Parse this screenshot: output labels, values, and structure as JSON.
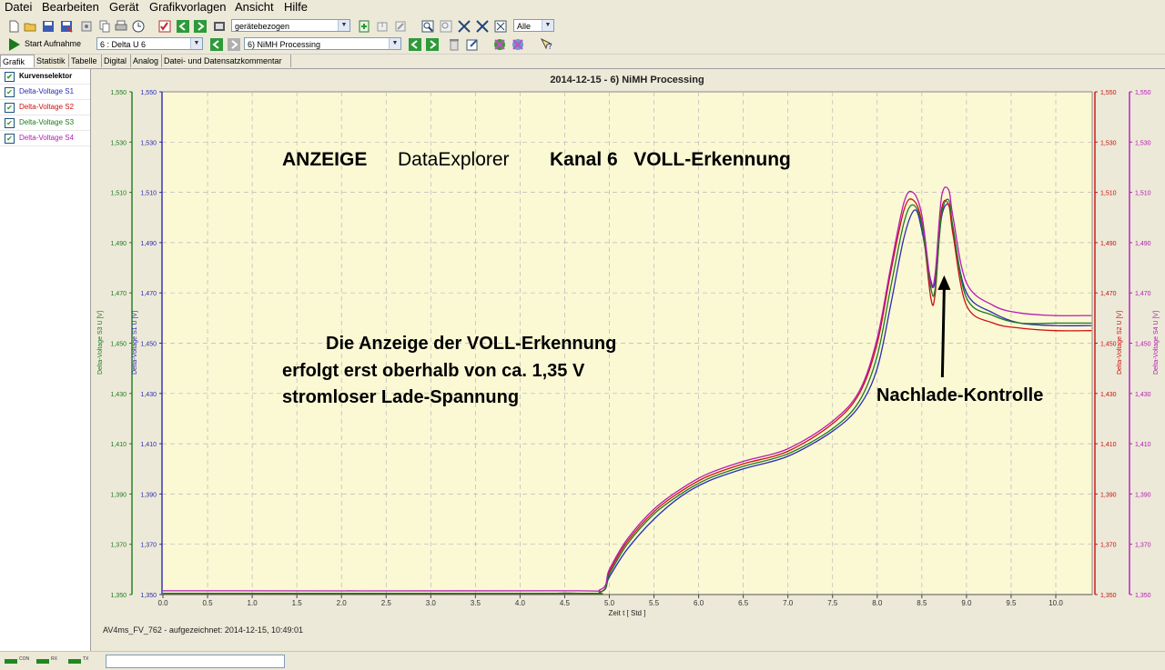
{
  "menu": {
    "items": [
      {
        "label": "Datei",
        "accel": "D"
      },
      {
        "label": "Bearbeiten",
        "accel": "B"
      },
      {
        "label": "Gerät",
        "accel": "G"
      },
      {
        "label": "Grafikvorlagen",
        "accel": "v"
      },
      {
        "label": "Ansicht",
        "accel": "A"
      },
      {
        "label": "Hilfe",
        "accel": "H"
      }
    ]
  },
  "toolbar1": {
    "device_mode": "gerätebezogen",
    "filter": "Alle"
  },
  "toolbar2": {
    "start_label": "Start Aufnahme",
    "channel": "6 : Delta  U  6",
    "template": "6) NiMH Processing"
  },
  "tabs": [
    "Grafik",
    "Statistik",
    "Tabelle",
    "Digital",
    "Analog",
    "Datei- und Datensatzkommentar"
  ],
  "sidebar": {
    "header": "Kurvenselektor",
    "items": [
      {
        "label": "Delta-Voltage S1",
        "color": "#2b2bb4"
      },
      {
        "label": "Delta-Voltage S2",
        "color": "#cc1111"
      },
      {
        "label": "Delta-Voltage S3",
        "color": "#1e7a1e"
      },
      {
        "label": "Delta-Voltage S4",
        "color": "#b51bb5"
      }
    ]
  },
  "chart_data": {
    "type": "line",
    "title": "2014-12-15 - 6) NiMH Processing",
    "xlabel": "Zeit  t  [ Std ]",
    "xlim": [
      0,
      10.4
    ],
    "xticks": [
      "0.0",
      "0.5",
      "1.0",
      "1.5",
      "2.0",
      "2.5",
      "3.0",
      "3.5",
      "4.0",
      "4.5",
      "5.0",
      "5.5",
      "6.0",
      "6.5",
      "7.0",
      "7.5",
      "8.0",
      "8.5",
      "9.0",
      "9.5",
      "10.0"
    ],
    "ylim": [
      1.35,
      1.55
    ],
    "yticks": [
      "1,350",
      "1,370",
      "1,390",
      "1,410",
      "1,430",
      "1,450",
      "1,470",
      "1,490",
      "1,510",
      "1,530",
      "1,550"
    ],
    "axis_labels": {
      "s3": "Delta-Voltage S3  U  [V]",
      "s1": "Delta-Voltage S1  U  [V]",
      "s2": "Delta-Voltage S2  U  [V]",
      "s4": "Delta-Voltage S4  U  [V]"
    },
    "grid": true,
    "background": "#fbf8d4",
    "series": [
      {
        "name": "Delta-Voltage S1",
        "color": "#2b2bb4",
        "x": [
          0,
          4.4,
          4.9,
          5.0,
          5.2,
          5.5,
          5.8,
          6.1,
          6.5,
          7.0,
          7.5,
          7.8,
          8.0,
          8.15,
          8.3,
          8.42,
          8.5,
          8.6,
          8.65,
          8.72,
          8.8,
          8.85,
          9.0,
          9.3,
          9.6,
          10.0,
          10.4
        ],
        "y": [
          1.3505,
          1.3505,
          1.351,
          1.357,
          1.368,
          1.38,
          1.389,
          1.395,
          1.4,
          1.405,
          1.415,
          1.425,
          1.44,
          1.465,
          1.492,
          1.503,
          1.495,
          1.475,
          1.475,
          1.5,
          1.505,
          1.495,
          1.47,
          1.462,
          1.458,
          1.457,
          1.457
        ]
      },
      {
        "name": "Delta-Voltage S2",
        "color": "#cc1111",
        "x": [
          0,
          4.4,
          4.9,
          5.0,
          5.2,
          5.5,
          5.8,
          6.1,
          6.5,
          7.0,
          7.5,
          7.8,
          8.0,
          8.15,
          8.3,
          8.4,
          8.5,
          8.6,
          8.65,
          8.72,
          8.8,
          8.85,
          9.0,
          9.3,
          9.6,
          10.0,
          10.4
        ],
        "y": [
          1.3505,
          1.3505,
          1.351,
          1.359,
          1.371,
          1.383,
          1.391,
          1.397,
          1.402,
          1.407,
          1.418,
          1.43,
          1.45,
          1.478,
          1.503,
          1.507,
          1.498,
          1.468,
          1.47,
          1.503,
          1.505,
          1.493,
          1.465,
          1.458,
          1.456,
          1.455,
          1.455
        ]
      },
      {
        "name": "Delta-Voltage S3",
        "color": "#1e7a1e",
        "x": [
          0,
          4.4,
          4.9,
          5.0,
          5.2,
          5.5,
          5.8,
          6.1,
          6.5,
          7.0,
          7.5,
          7.8,
          8.0,
          8.15,
          8.3,
          8.4,
          8.5,
          8.6,
          8.65,
          8.72,
          8.8,
          8.85,
          9.0,
          9.3,
          9.6,
          10.0,
          10.4
        ],
        "y": [
          1.3505,
          1.3505,
          1.351,
          1.358,
          1.37,
          1.382,
          1.39,
          1.396,
          1.401,
          1.406,
          1.416,
          1.427,
          1.445,
          1.472,
          1.498,
          1.505,
          1.497,
          1.472,
          1.472,
          1.501,
          1.507,
          1.496,
          1.468,
          1.461,
          1.458,
          1.458,
          1.458
        ]
      },
      {
        "name": "Delta-Voltage S4",
        "color": "#b51bb5",
        "x": [
          0,
          4.4,
          4.9,
          5.0,
          5.2,
          5.5,
          5.8,
          6.1,
          6.5,
          7.0,
          7.5,
          7.8,
          8.0,
          8.15,
          8.3,
          8.4,
          8.5,
          8.6,
          8.65,
          8.72,
          8.8,
          8.85,
          9.0,
          9.3,
          9.6,
          10.0,
          10.4
        ],
        "y": [
          1.3515,
          1.3515,
          1.352,
          1.36,
          1.372,
          1.384,
          1.392,
          1.398,
          1.403,
          1.408,
          1.419,
          1.431,
          1.452,
          1.48,
          1.506,
          1.51,
          1.501,
          1.474,
          1.478,
          1.508,
          1.511,
          1.5,
          1.474,
          1.465,
          1.462,
          1.461,
          1.461
        ]
      }
    ],
    "annotations": {
      "heading_a": "ANZEIGE",
      "heading_b": "DataExplorer",
      "heading_c": "Kanal 6   VOLL-Erkennung",
      "note_line1": "Die Anzeige der VOLL-Erkennung",
      "note_line2": "erfolgt erst oberhalb von ca. 1,35 V",
      "note_line3": "stromloser Lade-Spannung",
      "arrow_label": "Nachlade-Kontrolle",
      "arrow_target": [
        8.75,
        1.477
      ]
    },
    "footer": "AV4ms_FV_762 - aufgezeichnet: 2014-12-15, 10:49:01"
  },
  "status": {
    "leds": [
      "CON",
      "RX",
      "TX"
    ]
  }
}
